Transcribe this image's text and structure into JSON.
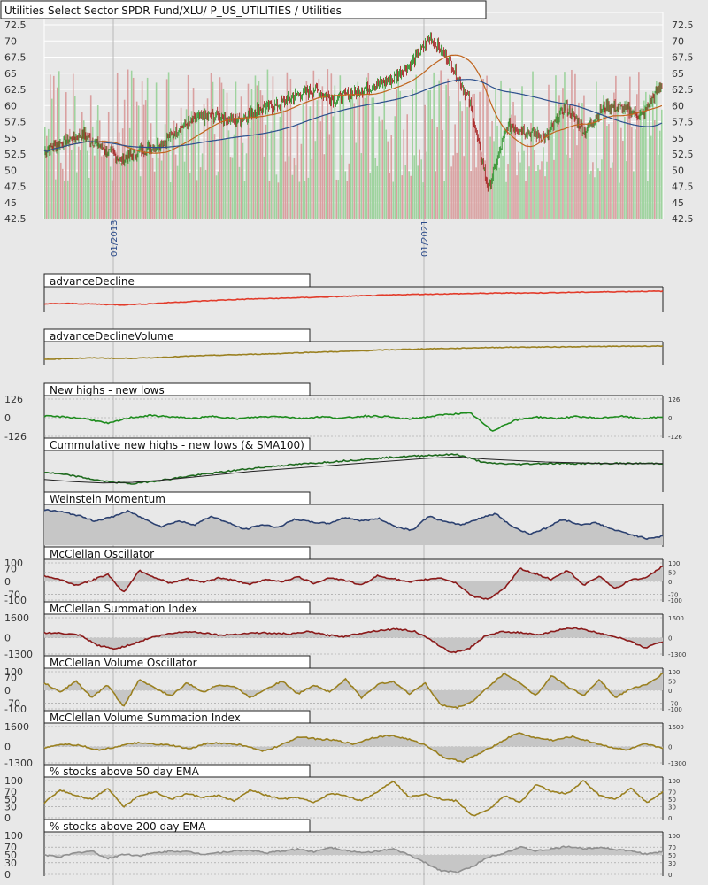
{
  "title": "Utilities Select Sector SPDR Fund/XLU/ P_US_UTILITIES / Utilities",
  "colors": {
    "background": "#e8e8e8",
    "price_up": "#1e8c1e",
    "price_down": "#a01010",
    "volume_up": "#9fd39f",
    "volume_down": "#d9a0a0",
    "sma_short": "#c0651e",
    "sma_long": "#2c4f8c",
    "advance_decline": "#e23b2a",
    "advance_decline_volume": "#9a8020",
    "new_highs_lows": "#1e8c1e",
    "cumulative": "#1e6a1e",
    "cumulative_sma": "#222222",
    "weinstein": "#2c4170",
    "mcclellan": "#8b1a1a",
    "mcclellan_volume": "#9a8020",
    "pct_50": "#9a8020",
    "pct_200": "#909090",
    "fill": "#c6c6c6"
  },
  "chart_data": [
    {
      "type": "candlestick",
      "name": "price",
      "title": "Utilities Select Sector SPDR Fund/XLU/ P_US_UTILITIES / Utilities",
      "ylim": [
        42.5,
        72.5
      ],
      "y_ticks": [
        "72.5",
        "70",
        "67.5",
        "65",
        "62.5",
        "60",
        "57.5",
        "55",
        "52.5",
        "50",
        "47.5",
        "45",
        "42.5"
      ],
      "x_tick_labels": [
        "01/2013",
        "01/2021"
      ],
      "approx_close_path": [
        {
          "x": "2011-01",
          "y": 53.0
        },
        {
          "x": "2011-06",
          "y": 54.5
        },
        {
          "x": "2011-12",
          "y": 55.5
        },
        {
          "x": "2012-06",
          "y": 53.5
        },
        {
          "x": "2012-12",
          "y": 51.5
        },
        {
          "x": "2013-06",
          "y": 53.0
        },
        {
          "x": "2013-12",
          "y": 54.0
        },
        {
          "x": "2014-06",
          "y": 56.5
        },
        {
          "x": "2014-12",
          "y": 58.0
        },
        {
          "x": "2015-06",
          "y": 58.5
        },
        {
          "x": "2015-12",
          "y": 57.5
        },
        {
          "x": "2016-06",
          "y": 59.5
        },
        {
          "x": "2016-12",
          "y": 60.0
        },
        {
          "x": "2017-06",
          "y": 61.5
        },
        {
          "x": "2017-12",
          "y": 62.5
        },
        {
          "x": "2018-06",
          "y": 61.0
        },
        {
          "x": "2018-12",
          "y": 62.0
        },
        {
          "x": "2019-06",
          "y": 63.0
        },
        {
          "x": "2019-12",
          "y": 64.0
        },
        {
          "x": "2020-06",
          "y": 66.5
        },
        {
          "x": "2020-12",
          "y": 70.5
        },
        {
          "x": "2021-03",
          "y": 67.0
        },
        {
          "x": "2021-06",
          "y": 61.0
        },
        {
          "x": "2021-09",
          "y": 47.0
        },
        {
          "x": "2021-12",
          "y": 57.0
        },
        {
          "x": "2022-06",
          "y": 56.0
        },
        {
          "x": "2022-12",
          "y": 55.0
        },
        {
          "x": "2023-06",
          "y": 60.0
        },
        {
          "x": "2023-12",
          "y": 56.0
        },
        {
          "x": "2024-06",
          "y": 60.0
        },
        {
          "x": "2024-12",
          "y": 59.5
        },
        {
          "x": "2025-06",
          "y": 58.5
        },
        {
          "x": "2025-10",
          "y": 63.5
        }
      ],
      "series": [
        {
          "name": "SMA short",
          "color": "#c0651e"
        },
        {
          "name": "SMA long",
          "color": "#2c4f8c"
        }
      ]
    },
    {
      "type": "line",
      "name": "advanceDecline",
      "ylim": [
        0,
        1
      ],
      "values": [
        0.3,
        0.32,
        0.29,
        0.25,
        0.3,
        0.38,
        0.44,
        0.5,
        0.55,
        0.58,
        0.62,
        0.66,
        0.7,
        0.74,
        0.78,
        0.8,
        0.82,
        0.84,
        0.86,
        0.86,
        0.88,
        0.9,
        0.92,
        0.94,
        0.95
      ]
    },
    {
      "type": "line",
      "name": "advanceDeclineVolume",
      "ylim": [
        0,
        1
      ],
      "values": [
        0.2,
        0.25,
        0.28,
        0.25,
        0.28,
        0.34,
        0.4,
        0.44,
        0.48,
        0.52,
        0.58,
        0.62,
        0.66,
        0.72,
        0.76,
        0.8,
        0.82,
        0.86,
        0.88,
        0.89,
        0.9,
        0.92,
        0.93,
        0.94,
        0.95
      ]
    },
    {
      "type": "line",
      "name": "New highs - new lows",
      "ylim": [
        -126,
        126
      ],
      "y_ticks": [
        "126",
        "0",
        "-126"
      ],
      "right_ticks": [
        "126",
        "0",
        "-126"
      ],
      "values": [
        10,
        5,
        -8,
        -40,
        0,
        15,
        5,
        -5,
        10,
        -8,
        4,
        10,
        -5,
        6,
        -4,
        12,
        8,
        -10,
        6,
        25,
        30,
        -90,
        -20,
        5,
        -5,
        8,
        -4,
        10,
        -6,
        4
      ]
    },
    {
      "type": "line",
      "name": "Cummulative new highs - new lows (& SMA100)",
      "ylim": [
        0,
        1
      ],
      "values": [
        0.5,
        0.4,
        0.25,
        0.18,
        0.28,
        0.4,
        0.5,
        0.6,
        0.68,
        0.74,
        0.8,
        0.86,
        0.92,
        0.96,
        0.99,
        0.75,
        0.72,
        0.74,
        0.74,
        0.74,
        0.74,
        0.74
      ],
      "sma": [
        0.3,
        0.24,
        0.2,
        0.22,
        0.28,
        0.36,
        0.44,
        0.52,
        0.58,
        0.64,
        0.7,
        0.76,
        0.82,
        0.88,
        0.92,
        0.86,
        0.82,
        0.78,
        0.76,
        0.74,
        0.74,
        0.74
      ]
    },
    {
      "type": "area",
      "name": "Weinstein Momentum",
      "ylim": [
        0,
        1
      ],
      "values": [
        0.95,
        0.9,
        0.8,
        0.65,
        0.75,
        0.92,
        0.7,
        0.5,
        0.65,
        0.55,
        0.78,
        0.6,
        0.42,
        0.55,
        0.48,
        0.7,
        0.62,
        0.58,
        0.75,
        0.65,
        0.72,
        0.5,
        0.4,
        0.78,
        0.62,
        0.55,
        0.72,
        0.85,
        0.5,
        0.3,
        0.45,
        0.7,
        0.55,
        0.6,
        0.42,
        0.3,
        0.18,
        0.24
      ]
    },
    {
      "type": "area",
      "name": "McClellan Oscillator",
      "ylim": [
        -100,
        100
      ],
      "y_ticks": [
        "100",
        "70",
        "0",
        "-70",
        "-100"
      ],
      "right_ticks": [
        "100",
        "50",
        "0",
        "-70",
        "-100"
      ],
      "values": [
        30,
        10,
        -20,
        5,
        40,
        -60,
        60,
        20,
        -10,
        15,
        -5,
        20,
        5,
        -15,
        10,
        0,
        25,
        -10,
        20,
        5,
        -20,
        30,
        15,
        -5,
        10,
        20,
        -10,
        -80,
        -95,
        -40,
        70,
        40,
        10,
        60,
        -20,
        30,
        -40,
        10,
        20,
        85
      ]
    },
    {
      "type": "area",
      "name": "McClellan Summation Index",
      "ylim": [
        -1300,
        1600
      ],
      "y_ticks": [
        "1600",
        "0",
        "-1300"
      ],
      "right_ticks": [
        "1600",
        "0",
        "-1300"
      ],
      "values": [
        400,
        350,
        200,
        -600,
        -900,
        -500,
        0,
        300,
        500,
        400,
        200,
        300,
        400,
        350,
        300,
        500,
        200,
        100,
        400,
        600,
        700,
        500,
        -300,
        -1200,
        -900,
        200,
        500,
        400,
        200,
        600,
        800,
        500,
        200,
        -200,
        -800,
        -300
      ]
    },
    {
      "type": "area",
      "name": "McClellan Volume Oscillator",
      "ylim": [
        -100,
        100
      ],
      "y_ticks": [
        "100",
        "70",
        "0",
        "-70",
        "-100"
      ],
      "right_ticks": [
        "100",
        "50",
        "0",
        "-70",
        "-100"
      ],
      "values": [
        40,
        -10,
        50,
        -40,
        30,
        -90,
        60,
        10,
        -30,
        40,
        -10,
        30,
        20,
        -40,
        10,
        50,
        -20,
        30,
        -10,
        60,
        -40,
        30,
        50,
        -20,
        40,
        -80,
        -95,
        -60,
        20,
        90,
        40,
        -30,
        80,
        20,
        -30,
        60,
        -40,
        10,
        30,
        90
      ]
    },
    {
      "type": "area",
      "name": "McClellan Volume Summation Index",
      "ylim": [
        -1300,
        1600
      ],
      "y_ticks": [
        "1600",
        "0",
        "-1300"
      ],
      "right_ticks": [
        "1600",
        "0",
        "-1300"
      ],
      "values": [
        -100,
        200,
        100,
        -300,
        0,
        300,
        200,
        100,
        -200,
        300,
        250,
        100,
        -400,
        100,
        800,
        600,
        500,
        200,
        700,
        900,
        600,
        100,
        -900,
        -1200,
        -500,
        300,
        1100,
        700,
        500,
        800,
        400,
        0,
        -300,
        200,
        -100
      ]
    },
    {
      "type": "line",
      "name": "% stocks above 50 day EMA",
      "ylim": [
        0,
        100
      ],
      "y_ticks": [
        "100",
        "70",
        "50",
        "30",
        "0"
      ],
      "right_ticks": [
        "100",
        "70",
        "50",
        "30",
        "0"
      ],
      "values": [
        40,
        75,
        60,
        50,
        80,
        30,
        60,
        70,
        50,
        65,
        55,
        60,
        45,
        75,
        60,
        50,
        55,
        40,
        65,
        60,
        45,
        70,
        100,
        55,
        65,
        50,
        45,
        5,
        20,
        60,
        40,
        90,
        70,
        65,
        100,
        60,
        50,
        80,
        40,
        70
      ]
    },
    {
      "type": "line",
      "name": "% stocks above 200 day EMA",
      "ylim": [
        0,
        100
      ],
      "y_ticks": [
        "100",
        "70",
        "50",
        "30",
        "0"
      ],
      "right_ticks": [
        "100",
        "70",
        "50",
        "30",
        "0"
      ],
      "values": [
        50,
        45,
        55,
        60,
        40,
        52,
        48,
        55,
        60,
        58,
        52,
        56,
        60,
        62,
        55,
        60,
        65,
        58,
        70,
        62,
        55,
        60,
        65,
        50,
        30,
        10,
        5,
        20,
        45,
        55,
        70,
        60,
        65,
        72,
        66,
        70,
        64,
        60,
        52,
        58
      ]
    }
  ]
}
